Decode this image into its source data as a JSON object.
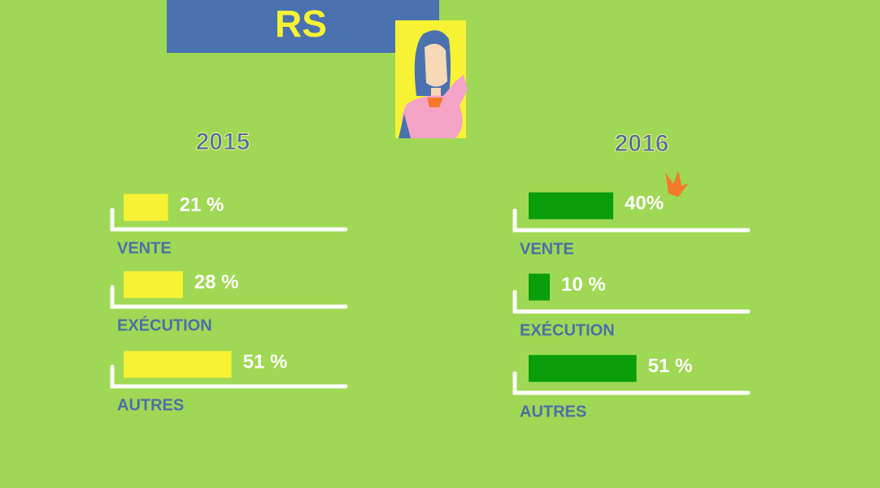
{
  "title": "RS",
  "chart_data": [
    {
      "type": "bar",
      "title": "2015",
      "categories": [
        "VENTE",
        "EXÉCUTION",
        "AUTRES"
      ],
      "values": [
        21,
        28,
        51
      ],
      "value_labels": [
        "21 %",
        "28 %",
        "51 %"
      ],
      "color": "#f7f233"
    },
    {
      "type": "bar",
      "title": "2016",
      "categories": [
        "VENTE",
        "EXÉCUTION",
        "AUTRES"
      ],
      "values": [
        40,
        10,
        51
      ],
      "value_labels": [
        "40%",
        "10 %",
        "51 %"
      ],
      "color": "#0a9e0a"
    }
  ]
}
